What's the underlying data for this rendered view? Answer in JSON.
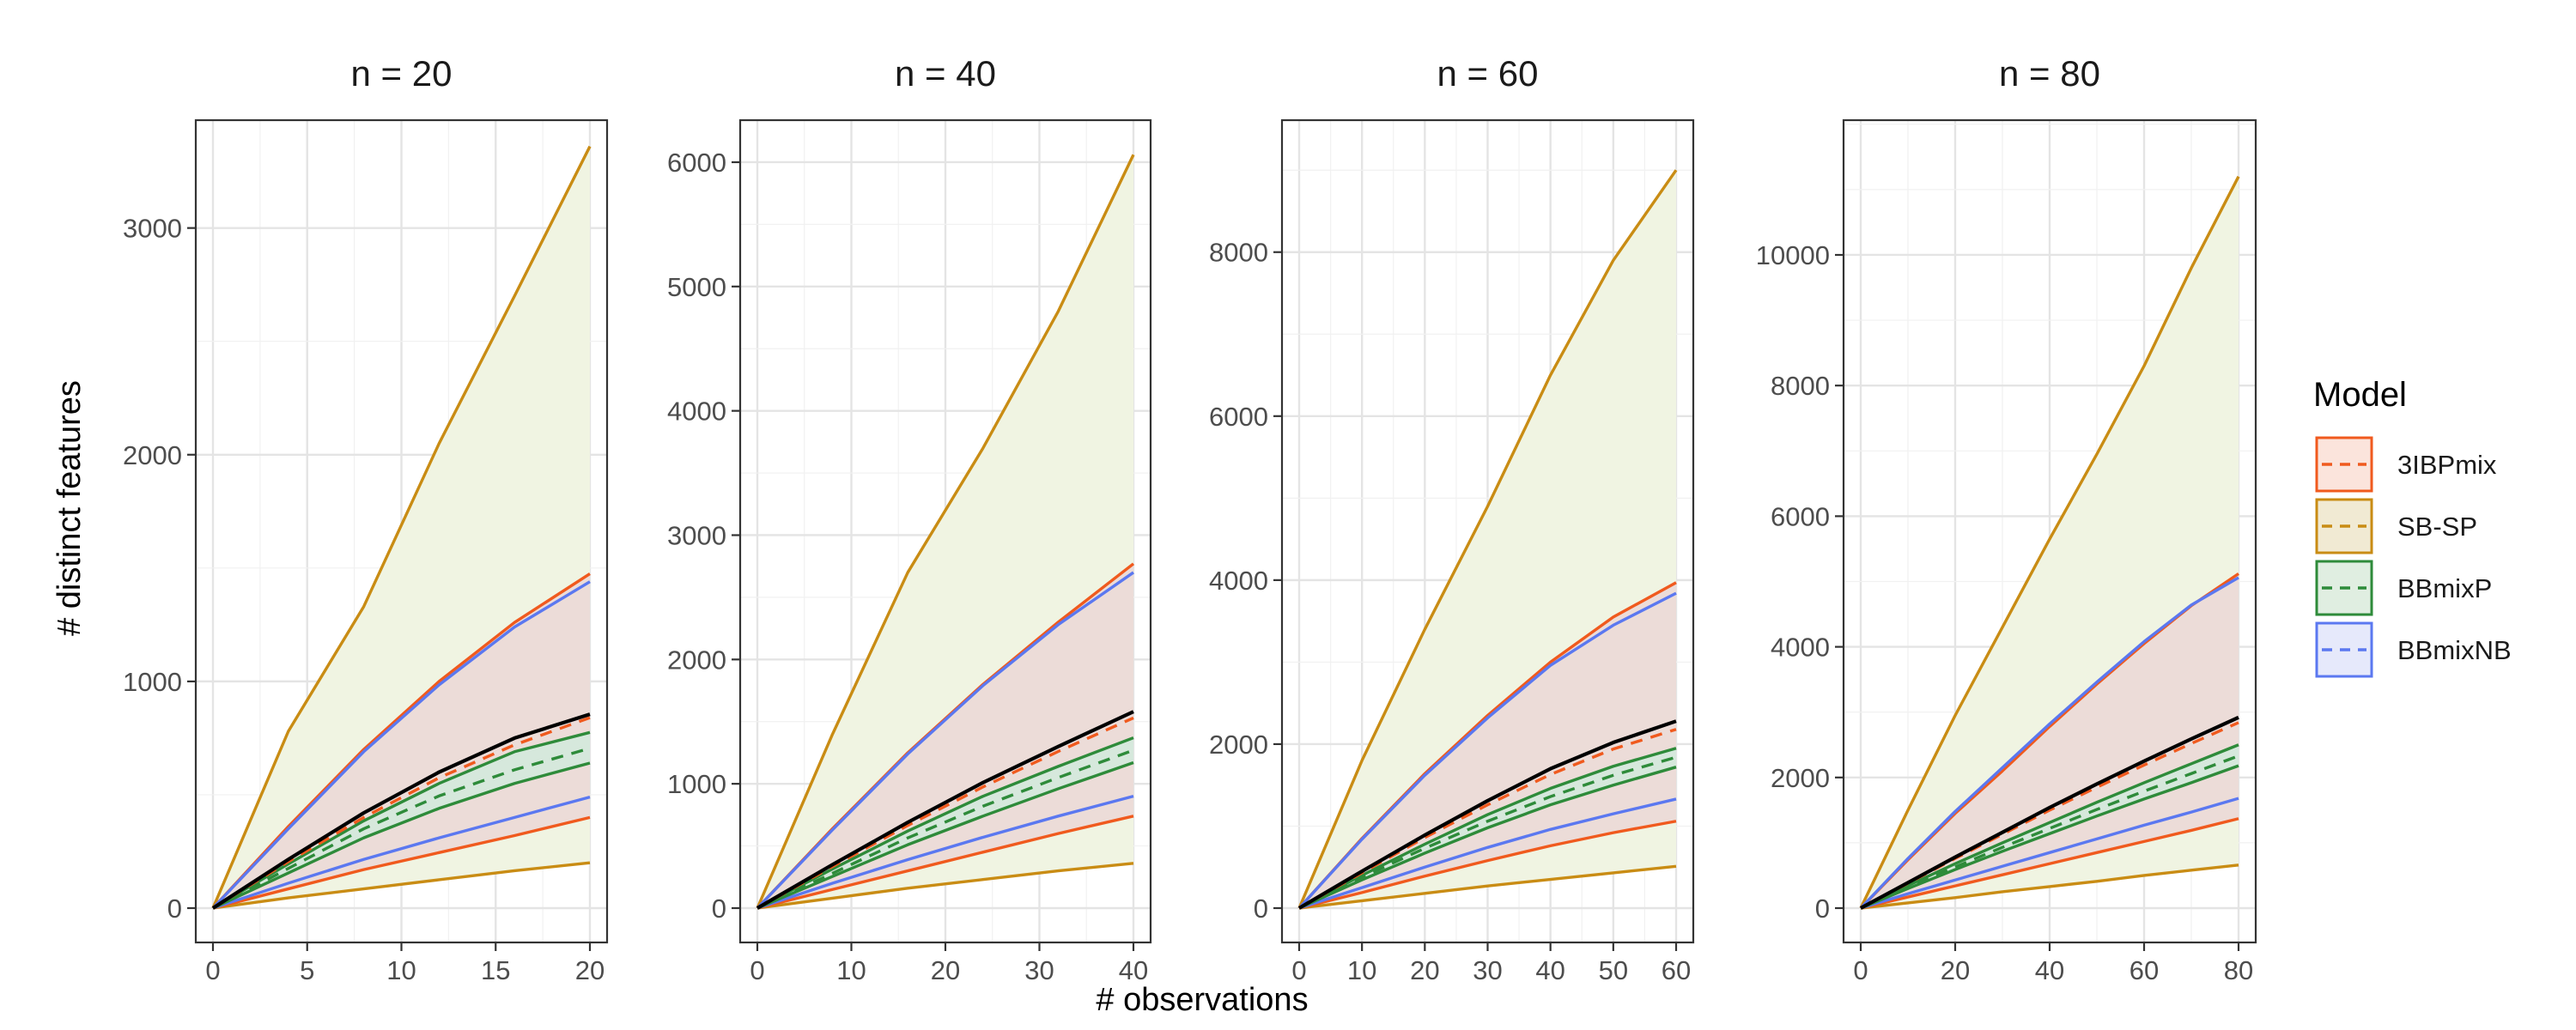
{
  "chart_data": {
    "type": "line",
    "xlabel": "# observations",
    "ylabel": "# distinct features",
    "legend": {
      "title": "Model",
      "position": "right",
      "entries": [
        {
          "label": "3IBPmix",
          "color": "#f05a1e",
          "fill": "#fbe4dc"
        },
        {
          "label": "SB-SP",
          "color": "#c98c14",
          "fill": "#f1ead3"
        },
        {
          "label": "BBmixP",
          "color": "#2e8b3a",
          "fill": "#e0eee1"
        },
        {
          "label": "BBmixNB",
          "color": "#5b78f0",
          "fill": "#e6e9fb"
        }
      ]
    },
    "colors": {
      "observed": "#000000",
      "3IBPmix": "#f05a1e",
      "SB-SP": "#c98c14",
      "BBmixP": "#2e8b3a",
      "BBmixNB": "#5b78f0",
      "band_SB-SP": "#f0f4e2",
      "band_3IBPmix": "#ecdcd8",
      "band_BBmixP": "#d6e8dc"
    },
    "grid": true,
    "panels": [
      {
        "title": "n = 20",
        "xlim": [
          0,
          20
        ],
        "ylim": [
          0,
          3400
        ],
        "xticks": [
          0,
          5,
          10,
          15,
          20
        ],
        "yticks": [
          0,
          1000,
          2000,
          3000
        ],
        "xtick_labels": [
          "0",
          "5",
          "10",
          "15",
          "20"
        ],
        "ytick_labels": [
          "0",
          "1000",
          "2000",
          "3000"
        ],
        "x": [
          0,
          4,
          8,
          12,
          16,
          20
        ],
        "series": [
          {
            "model": "SB-SP",
            "kind": "upper",
            "values": [
              0,
              780,
              1330,
              2050,
              2700,
              3360
            ]
          },
          {
            "model": "3IBPmix",
            "kind": "upper",
            "values": [
              0,
              360,
              700,
              1000,
              1260,
              1475
            ]
          },
          {
            "model": "BBmixNB",
            "kind": "upper",
            "values": [
              0,
              350,
              690,
              985,
              1240,
              1440
            ]
          },
          {
            "model": "observed",
            "kind": "observed",
            "values": [
              0,
              215,
              420,
              600,
              750,
              855
            ]
          },
          {
            "model": "3IBPmix",
            "kind": "mean",
            "values": [
              0,
              205,
              400,
              575,
              720,
              840
            ]
          },
          {
            "model": "BBmixP",
            "kind": "upper",
            "values": [
              0,
              195,
              385,
              550,
              690,
              775
            ]
          },
          {
            "model": "BBmixP",
            "kind": "mean",
            "values": [
              0,
              175,
              350,
              495,
              610,
              705
            ]
          },
          {
            "model": "BBmixP",
            "kind": "lower",
            "values": [
              0,
              155,
              310,
              440,
              550,
              640
            ]
          },
          {
            "model": "BBmixNB",
            "kind": "lower",
            "values": [
              0,
              110,
              215,
              310,
              400,
              490
            ]
          },
          {
            "model": "3IBPmix",
            "kind": "lower",
            "values": [
              0,
              85,
              170,
              245,
              320,
              400
            ]
          },
          {
            "model": "SB-SP",
            "kind": "lower",
            "values": [
              0,
              45,
              85,
              125,
              165,
              200
            ]
          }
        ]
      },
      {
        "title": "n = 40",
        "xlim": [
          0,
          40
        ],
        "ylim": [
          0,
          6200
        ],
        "xticks": [
          0,
          10,
          20,
          30,
          40
        ],
        "yticks": [
          0,
          1000,
          2000,
          3000,
          4000,
          5000,
          6000
        ],
        "xtick_labels": [
          "0",
          "10",
          "20",
          "30",
          "40"
        ],
        "ytick_labels": [
          "0",
          "1000",
          "2000",
          "3000",
          "4000",
          "5000",
          "6000"
        ],
        "x": [
          0,
          8,
          16,
          24,
          32,
          40
        ],
        "series": [
          {
            "model": "SB-SP",
            "kind": "upper",
            "values": [
              0,
              1400,
              2700,
              3700,
              4800,
              6060
            ]
          },
          {
            "model": "3IBPmix",
            "kind": "upper",
            "values": [
              0,
              640,
              1250,
              1800,
              2300,
              2770
            ]
          },
          {
            "model": "BBmixNB",
            "kind": "upper",
            "values": [
              0,
              630,
              1240,
              1790,
              2280,
              2700
            ]
          },
          {
            "model": "observed",
            "kind": "observed",
            "values": [
              0,
              350,
              690,
              1010,
              1300,
              1580
            ]
          },
          {
            "model": "3IBPmix",
            "kind": "mean",
            "values": [
              0,
              335,
              665,
              975,
              1260,
              1530
            ]
          },
          {
            "model": "BBmixP",
            "kind": "upper",
            "values": [
              0,
              315,
              620,
              900,
              1140,
              1370
            ]
          },
          {
            "model": "BBmixP",
            "kind": "mean",
            "values": [
              0,
              280,
              565,
              820,
              1050,
              1270
            ]
          },
          {
            "model": "BBmixP",
            "kind": "lower",
            "values": [
              0,
              255,
              510,
              740,
              960,
              1170
            ]
          },
          {
            "model": "BBmixNB",
            "kind": "lower",
            "values": [
              0,
              200,
              390,
              570,
              740,
              900
            ]
          },
          {
            "model": "3IBPmix",
            "kind": "lower",
            "values": [
              0,
              150,
              300,
              450,
              600,
              740
            ]
          },
          {
            "model": "SB-SP",
            "kind": "lower",
            "values": [
              0,
              80,
              160,
              230,
              300,
              360
            ]
          }
        ]
      },
      {
        "title": "n = 60",
        "xlim": [
          0,
          60
        ],
        "ylim": [
          0,
          9400
        ],
        "xticks": [
          0,
          10,
          20,
          30,
          40,
          50,
          60
        ],
        "yticks": [
          0,
          2000,
          4000,
          6000,
          8000
        ],
        "xtick_labels": [
          "0",
          "10",
          "20",
          "30",
          "40",
          "50",
          "60"
        ],
        "ytick_labels": [
          "0",
          "2000",
          "4000",
          "6000",
          "8000"
        ],
        "x": [
          0,
          10,
          20,
          30,
          40,
          50,
          60
        ],
        "series": [
          {
            "model": "SB-SP",
            "kind": "upper",
            "values": [
              0,
              1800,
              3400,
              4900,
              6500,
              7900,
              9000
            ]
          },
          {
            "model": "3IBPmix",
            "kind": "upper",
            "values": [
              0,
              850,
              1640,
              2350,
              3000,
              3550,
              3970
            ]
          },
          {
            "model": "BBmixNB",
            "kind": "upper",
            "values": [
              0,
              840,
              1620,
              2320,
              2960,
              3450,
              3840
            ]
          },
          {
            "model": "observed",
            "kind": "observed",
            "values": [
              0,
              450,
              890,
              1310,
              1700,
              2020,
              2280
            ]
          },
          {
            "model": "3IBPmix",
            "kind": "mean",
            "values": [
              0,
              430,
              860,
              1260,
              1630,
              1940,
              2180
            ]
          },
          {
            "model": "BBmixP",
            "kind": "upper",
            "values": [
              0,
              400,
              780,
              1140,
              1460,
              1730,
              1950
            ]
          },
          {
            "model": "BBmixP",
            "kind": "mean",
            "values": [
              0,
              375,
              730,
              1060,
              1360,
              1620,
              1840
            ]
          },
          {
            "model": "BBmixP",
            "kind": "lower",
            "values": [
              0,
              345,
              670,
              980,
              1260,
              1500,
              1720
            ]
          },
          {
            "model": "BBmixNB",
            "kind": "lower",
            "values": [
              0,
              250,
              500,
              740,
              960,
              1150,
              1330
            ]
          },
          {
            "model": "3IBPmix",
            "kind": "lower",
            "values": [
              0,
              190,
              390,
              580,
              760,
              920,
              1060
            ]
          },
          {
            "model": "SB-SP",
            "kind": "lower",
            "values": [
              0,
              90,
              180,
              270,
              350,
              430,
              510
            ]
          }
        ]
      },
      {
        "title": "n = 80",
        "xlim": [
          0,
          80
        ],
        "ylim": [
          0,
          11800
        ],
        "xticks": [
          0,
          20,
          40,
          60,
          80
        ],
        "yticks": [
          0,
          2000,
          4000,
          6000,
          8000,
          10000
        ],
        "xtick_labels": [
          "0",
          "20",
          "40",
          "60",
          "80"
        ],
        "ytick_labels": [
          "0",
          "2000",
          "4000",
          "6000",
          "8000",
          "10000"
        ],
        "x": [
          0,
          10,
          20,
          30,
          40,
          50,
          60,
          70,
          80
        ],
        "series": [
          {
            "model": "SB-SP",
            "kind": "upper",
            "values": [
              0,
              1500,
              2950,
              4300,
              5650,
              6950,
              8300,
              9800,
              11200
            ]
          },
          {
            "model": "3IBPmix",
            "kind": "upper",
            "values": [
              0,
              740,
              1450,
              2100,
              2780,
              3430,
              4050,
              4630,
              5120
            ]
          },
          {
            "model": "BBmixNB",
            "kind": "upper",
            "values": [
              0,
              760,
              1480,
              2150,
              2820,
              3460,
              4080,
              4640,
              5060
            ]
          },
          {
            "model": "observed",
            "kind": "observed",
            "values": [
              0,
              390,
              780,
              1160,
              1540,
              1900,
              2250,
              2590,
              2920
            ]
          },
          {
            "model": "3IBPmix",
            "kind": "mean",
            "values": [
              0,
              380,
              760,
              1130,
              1500,
              1850,
              2190,
              2520,
              2840
            ]
          },
          {
            "model": "BBmixP",
            "kind": "upper",
            "values": [
              0,
              345,
              680,
              1000,
              1310,
              1620,
              1920,
              2210,
              2500
            ]
          },
          {
            "model": "BBmixP",
            "kind": "mean",
            "values": [
              0,
              320,
              630,
              930,
              1220,
              1510,
              1790,
              2060,
              2330
            ]
          },
          {
            "model": "BBmixP",
            "kind": "lower",
            "values": [
              0,
              300,
              590,
              870,
              1140,
              1410,
              1670,
              1920,
              2180
            ]
          },
          {
            "model": "BBmixNB",
            "kind": "lower",
            "values": [
              0,
              220,
              430,
              640,
              850,
              1060,
              1270,
              1470,
              1680
            ]
          },
          {
            "model": "3IBPmix",
            "kind": "lower",
            "values": [
              0,
              170,
              340,
              510,
              680,
              850,
              1020,
              1190,
              1370
            ]
          },
          {
            "model": "SB-SP",
            "kind": "lower",
            "values": [
              0,
              80,
              160,
              250,
              330,
              410,
              500,
              580,
              660
            ]
          }
        ]
      }
    ]
  }
}
